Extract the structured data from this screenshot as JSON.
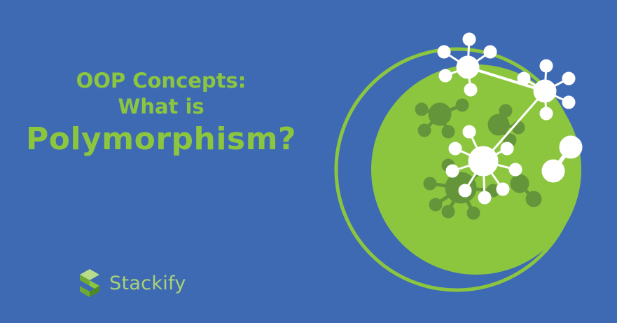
{
  "headline": {
    "line1": "OOP Concepts:",
    "line2": "What is",
    "line3": "Polymorphism?"
  },
  "brand": {
    "name": "Stackify"
  },
  "colors": {
    "background": "#3e6ab3",
    "accent_green": "#8cc63f",
    "node_white": "#ffffff"
  },
  "icons": [
    "stackify-logo-icon",
    "molecule-icon"
  ]
}
